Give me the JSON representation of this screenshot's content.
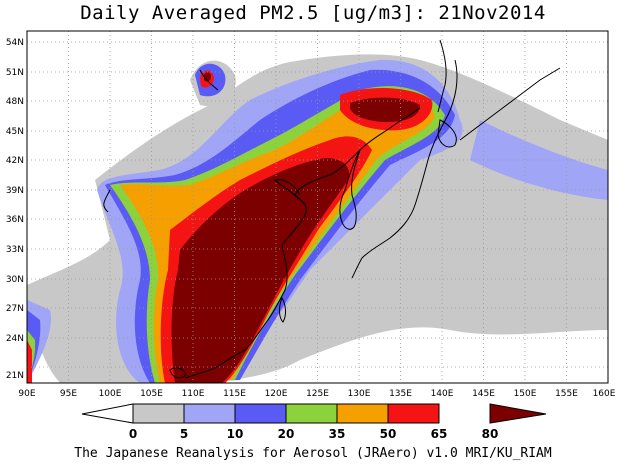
{
  "title": "Daily Averaged PM2.5 [ug/m3]: 21Nov2014",
  "footer": "The Japanese Reanalysis for Aerosol (JRAero) v1.0 MRI/KU_RIAM",
  "lon_ticks": [
    "90E",
    "95E",
    "100E",
    "105E",
    "110E",
    "115E",
    "120E",
    "125E",
    "130E",
    "135E",
    "140E",
    "145E",
    "150E",
    "155E",
    "160E"
  ],
  "lat_ticks": [
    "54N",
    "51N",
    "48N",
    "45N",
    "42N",
    "39N",
    "36N",
    "33N",
    "30N",
    "27N",
    "24N",
    "21N"
  ],
  "colorbar": {
    "levels": [
      "0",
      "5",
      "10",
      "20",
      "35",
      "50",
      "65",
      "80"
    ],
    "colors": [
      "#ffffff",
      "#c8c8c8",
      "#a0a5f5",
      "#5a5af5",
      "#8cd23c",
      "#f5a000",
      "#f51414",
      "#7d0000"
    ]
  }
}
